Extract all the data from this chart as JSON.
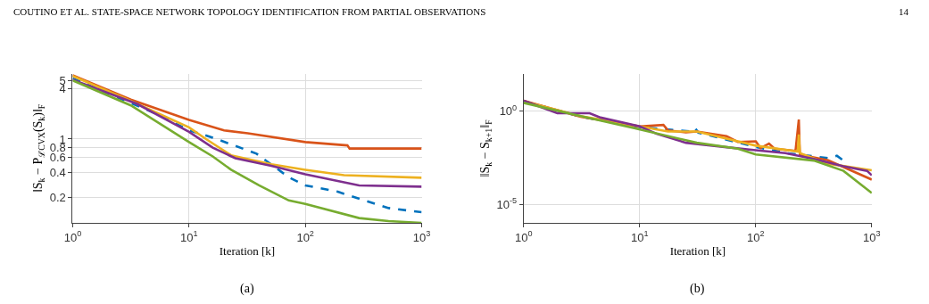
{
  "chart_data": [
    {
      "type": "line",
      "xlabel": "Iteration [k]",
      "ylabel": "‖S$_{k}$ − P$_{ℒCVX}$(S$_{k}$)‖$_{F}$",
      "log": "xy",
      "grid": true,
      "annotations": [
        "(a)",
        "COUTINO ET AL. STATE-SPACE NETWORK TOPOLOGY IDENTIFICATION FROM PARTIAL OBSERVATIONS",
        "14"
      ],
      "xlim": [
        1,
        1000
      ],
      "ylim": [
        0.1,
        6
      ],
      "xticks": [
        {
          "value": 1,
          "label": "10$^{0}$"
        },
        {
          "value": 10,
          "label": "10$^{1}$"
        },
        {
          "value": 100,
          "label": "10$^{2}$"
        },
        {
          "value": 1000,
          "label": "10$^{3}$"
        }
      ],
      "yticks": [
        0.2,
        0.4,
        0.6,
        0.8,
        1,
        4,
        5
      ],
      "series": [
        {
          "color": "#0072bd",
          "line_style": "dashed",
          "x": [
            1,
            5,
            10,
            16,
            38,
            72,
            100,
            190,
            520,
            1000
          ],
          "values": [
            5.3,
            2.06,
            1.27,
            1.04,
            0.67,
            0.35,
            0.28,
            0.235,
            0.15,
            0.134
          ]
        },
        {
          "color": "#d95319",
          "x": [
            1,
            3.16,
            10,
            20,
            32,
            100,
            230,
            240,
            1000
          ],
          "values": [
            5.78,
            2.96,
            1.69,
            1.27,
            1.17,
            0.92,
            0.84,
            0.77,
            0.77
          ]
        },
        {
          "color": "#edb120",
          "x": [
            1,
            3.16,
            10,
            14,
            23,
            51,
            100,
            215,
            1000
          ],
          "values": [
            5.65,
            2.85,
            1.38,
            1.0,
            0.64,
            0.5,
            0.43,
            0.37,
            0.345
          ]
        },
        {
          "color": "#7e2f8e",
          "x": [
            1,
            3.57,
            10,
            16,
            25,
            51,
            100,
            290,
            1000
          ],
          "values": [
            5.09,
            2.63,
            1.22,
            0.79,
            0.59,
            0.48,
            0.38,
            0.28,
            0.27
          ]
        },
        {
          "color": "#77ac30",
          "x": [
            1,
            3.16,
            10,
            16,
            23,
            40,
            72,
            100,
            290,
            520,
            1000
          ],
          "values": [
            5.0,
            2.52,
            0.92,
            0.62,
            0.43,
            0.28,
            0.185,
            0.168,
            0.114,
            0.105,
            0.1
          ]
        }
      ]
    },
    {
      "type": "line",
      "xlabel": "Iteration [k]",
      "ylabel": "‖S$_{k}$ − S$_{k+1}$‖$_{F}$",
      "log": "xy",
      "grid": true,
      "annotations": [
        "(b)"
      ],
      "xlim": [
        1,
        1000
      ],
      "ylim": [
        1e-06,
        100
      ],
      "xticks": [
        {
          "value": 1,
          "label": "10$^{0}$"
        },
        {
          "value": 10,
          "label": "10$^{1}$"
        },
        {
          "value": 100,
          "label": "10$^{2}$"
        },
        {
          "value": 1000,
          "label": "10$^{3}$"
        }
      ],
      "yticks": [
        {
          "value": 1,
          "label": "10$^{0}$"
        },
        {
          "value": 1e-05,
          "label": "10$^{-5}$"
        }
      ],
      "series": [
        {
          "color": "#0072bd",
          "line_style": "dashed",
          "x": [
            1,
            3.1,
            10,
            28,
            30,
            32,
            100,
            180,
            420,
            500,
            570
          ],
          "values": [
            3.4,
            0.5,
            0.14,
            0.08,
            0.12,
            0.07,
            0.012,
            0.0056,
            0.003,
            0.004,
            0.0022
          ]
        },
        {
          "color": "#d95319",
          "x": [
            1,
            3.1,
            10,
            16,
            17.5,
            25,
            31,
            56,
            70,
            100,
            110,
            130,
            145,
            220,
            235,
            240,
            420,
            1000
          ],
          "values": [
            3.6,
            0.5,
            0.15,
            0.18,
            0.093,
            0.072,
            0.08,
            0.045,
            0.022,
            0.024,
            0.0104,
            0.018,
            0.0096,
            0.0072,
            0.35,
            0.0046,
            0.0023,
            0.00021
          ]
        },
        {
          "color": "#edb120",
          "x": [
            1,
            3.1,
            10,
            17.5,
            31,
            100,
            230,
            235,
            240,
            420,
            1000
          ],
          "values": [
            3.3,
            0.54,
            0.15,
            0.08,
            0.08,
            0.014,
            0.0067,
            0.056,
            0.0056,
            0.0015,
            0.00067
          ]
        },
        {
          "color": "#7e2f8e",
          "x": [
            1,
            1.95,
            3.7,
            4.6,
            10,
            14,
            25,
            56,
            100,
            180,
            316,
            570,
            910,
            1000
          ],
          "values": [
            3.6,
            0.77,
            0.77,
            0.45,
            0.15,
            0.06,
            0.02,
            0.0115,
            0.008,
            0.0056,
            0.0027,
            0.0011,
            0.00062,
            0.00036
          ]
        },
        {
          "color": "#77ac30",
          "x": [
            1,
            3.1,
            8.8,
            31,
            70,
            100,
            316,
            570,
            1000
          ],
          "values": [
            2.78,
            0.54,
            0.124,
            0.02,
            0.0097,
            0.0047,
            0.0022,
            0.00062,
            4e-05
          ]
        }
      ]
    }
  ]
}
